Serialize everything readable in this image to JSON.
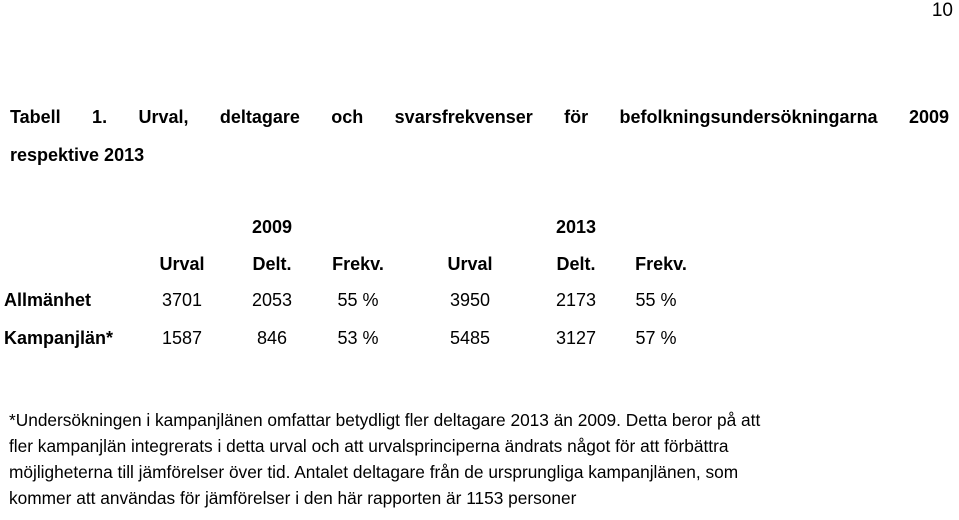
{
  "page_number": "10",
  "caption": {
    "line1": "Tabell 1. Urval, deltagare och svarsfrekvenser för befolkningsundersökningarna 2009",
    "line2": "respektive 2013"
  },
  "table": {
    "years": [
      "2009",
      "2013"
    ],
    "columns": [
      "Urval",
      "Delt.",
      "Frekv.",
      "Urval",
      "Delt.",
      "Frekv."
    ],
    "rows": [
      {
        "label": "Allmänhet",
        "cells": [
          "3701",
          "2053",
          "55 %",
          "3950",
          "2173",
          "55 %"
        ]
      },
      {
        "label": "Kampanjlän*",
        "cells": [
          "1587",
          "846",
          "53 %",
          "5485",
          "3127",
          "57 %"
        ]
      }
    ]
  },
  "footnote": {
    "lines": [
      "*Undersökningen i kampanjlänen omfattar betydligt fler deltagare 2013 än 2009. Detta beror på att",
      "fler kampanjlän integrerats i detta urval och att urvalsprinciperna ändrats något för att förbättra",
      "möjligheterna till jämförelser över tid. Antalet deltagare från de ursprungliga kampanjlänen, som",
      "kommer att användas för jämförelser i den här rapporten är 1153 personer"
    ]
  }
}
